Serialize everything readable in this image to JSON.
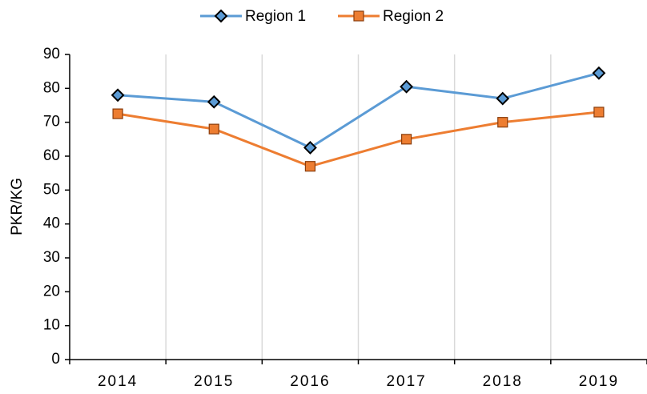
{
  "chart_data": {
    "type": "line",
    "categories": [
      "2014",
      "2015",
      "2016",
      "2017",
      "2018",
      "2019"
    ],
    "series": [
      {
        "name": "Region 1",
        "color": "#5b9bd5",
        "marker": "diamond",
        "values": [
          78,
          76,
          62.5,
          80.5,
          77,
          84.5
        ]
      },
      {
        "name": "Region 2",
        "color": "#ed7d31",
        "marker": "square",
        "values": [
          72.5,
          68,
          57,
          65,
          70,
          73
        ]
      }
    ],
    "y_label": "PKR/KG",
    "ylim": [
      0,
      90
    ],
    "yticks": [
      0,
      10,
      20,
      30,
      40,
      50,
      60,
      70,
      80,
      90
    ],
    "grid": "vertical",
    "legend": "top"
  }
}
